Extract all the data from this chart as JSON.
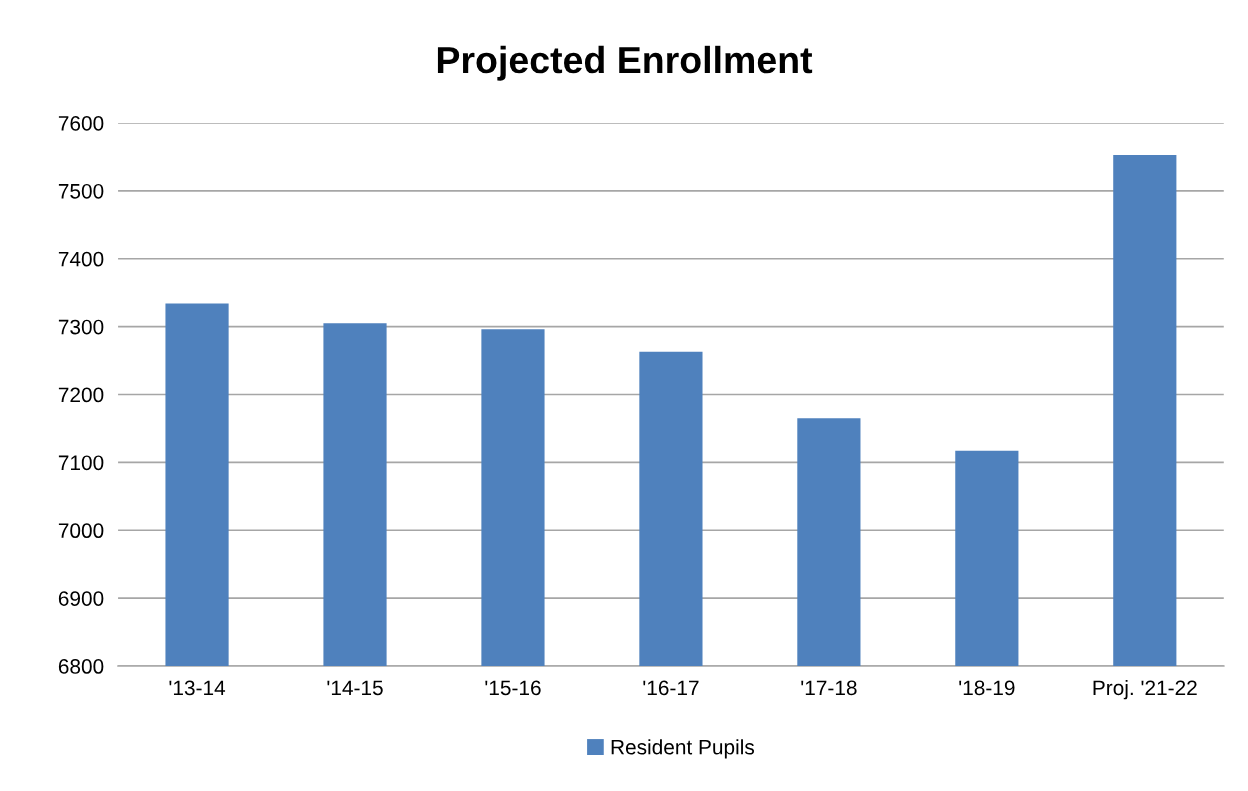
{
  "chart_data": {
    "type": "bar",
    "title": "Projected Enrollment",
    "categories": [
      "'13-14",
      "'14-15",
      "'15-16",
      "'16-17",
      "'17-18",
      "'18-19",
      "Proj. '21-22"
    ],
    "series": [
      {
        "name": "Resident Pupils",
        "color": "#4f81bd",
        "values": [
          7334,
          7305,
          7296,
          7263,
          7165,
          7117,
          7553
        ]
      }
    ],
    "ylim": [
      6800,
      7600
    ],
    "yticks": [
      6800,
      6900,
      7000,
      7100,
      7200,
      7300,
      7400,
      7500,
      7600
    ],
    "grid": "y",
    "legend": "bottom"
  }
}
